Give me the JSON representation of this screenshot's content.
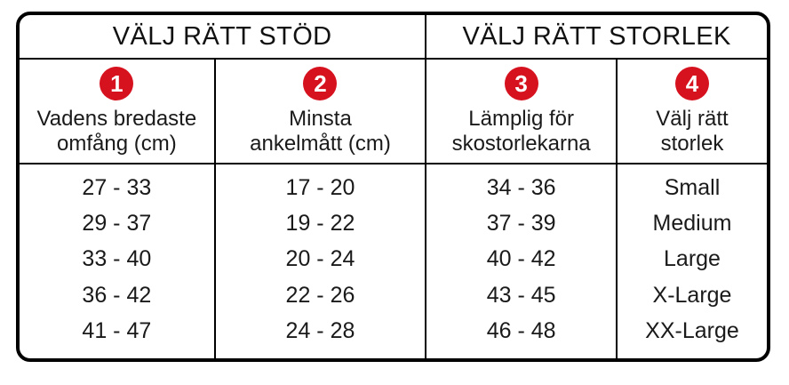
{
  "sections": [
    {
      "title": "VÄLJ RÄTT STÖD"
    },
    {
      "title": "VÄLJ RÄTT STORLEK"
    }
  ],
  "columns": [
    {
      "badge": "1",
      "label_line1": "Vadens bredaste",
      "label_line2": "omfång (cm)",
      "values": [
        "27 - 33",
        "29 - 37",
        "33 - 40",
        "36 - 42",
        "41 - 47"
      ]
    },
    {
      "badge": "2",
      "label_line1": "Minsta",
      "label_line2": "ankelmått (cm)",
      "values": [
        "17 - 20",
        "19 - 22",
        "20 - 24",
        "22 - 26",
        "24 - 28"
      ]
    },
    {
      "badge": "3",
      "label_line1": "Lämplig för",
      "label_line2": "skostorlekarna",
      "values": [
        "34 - 36",
        "37 - 39",
        "40 - 42",
        "43 - 45",
        "46 - 48"
      ]
    },
    {
      "badge": "4",
      "label_line1": "Välj rätt",
      "label_line2": "storlek",
      "values": [
        "Small",
        "Medium",
        "Large",
        "X-Large",
        "XX-Large"
      ]
    }
  ],
  "colors": {
    "badge_red": "#d6121f",
    "border_black": "#000000",
    "text_black": "#1a1a1a",
    "background": "#ffffff"
  }
}
